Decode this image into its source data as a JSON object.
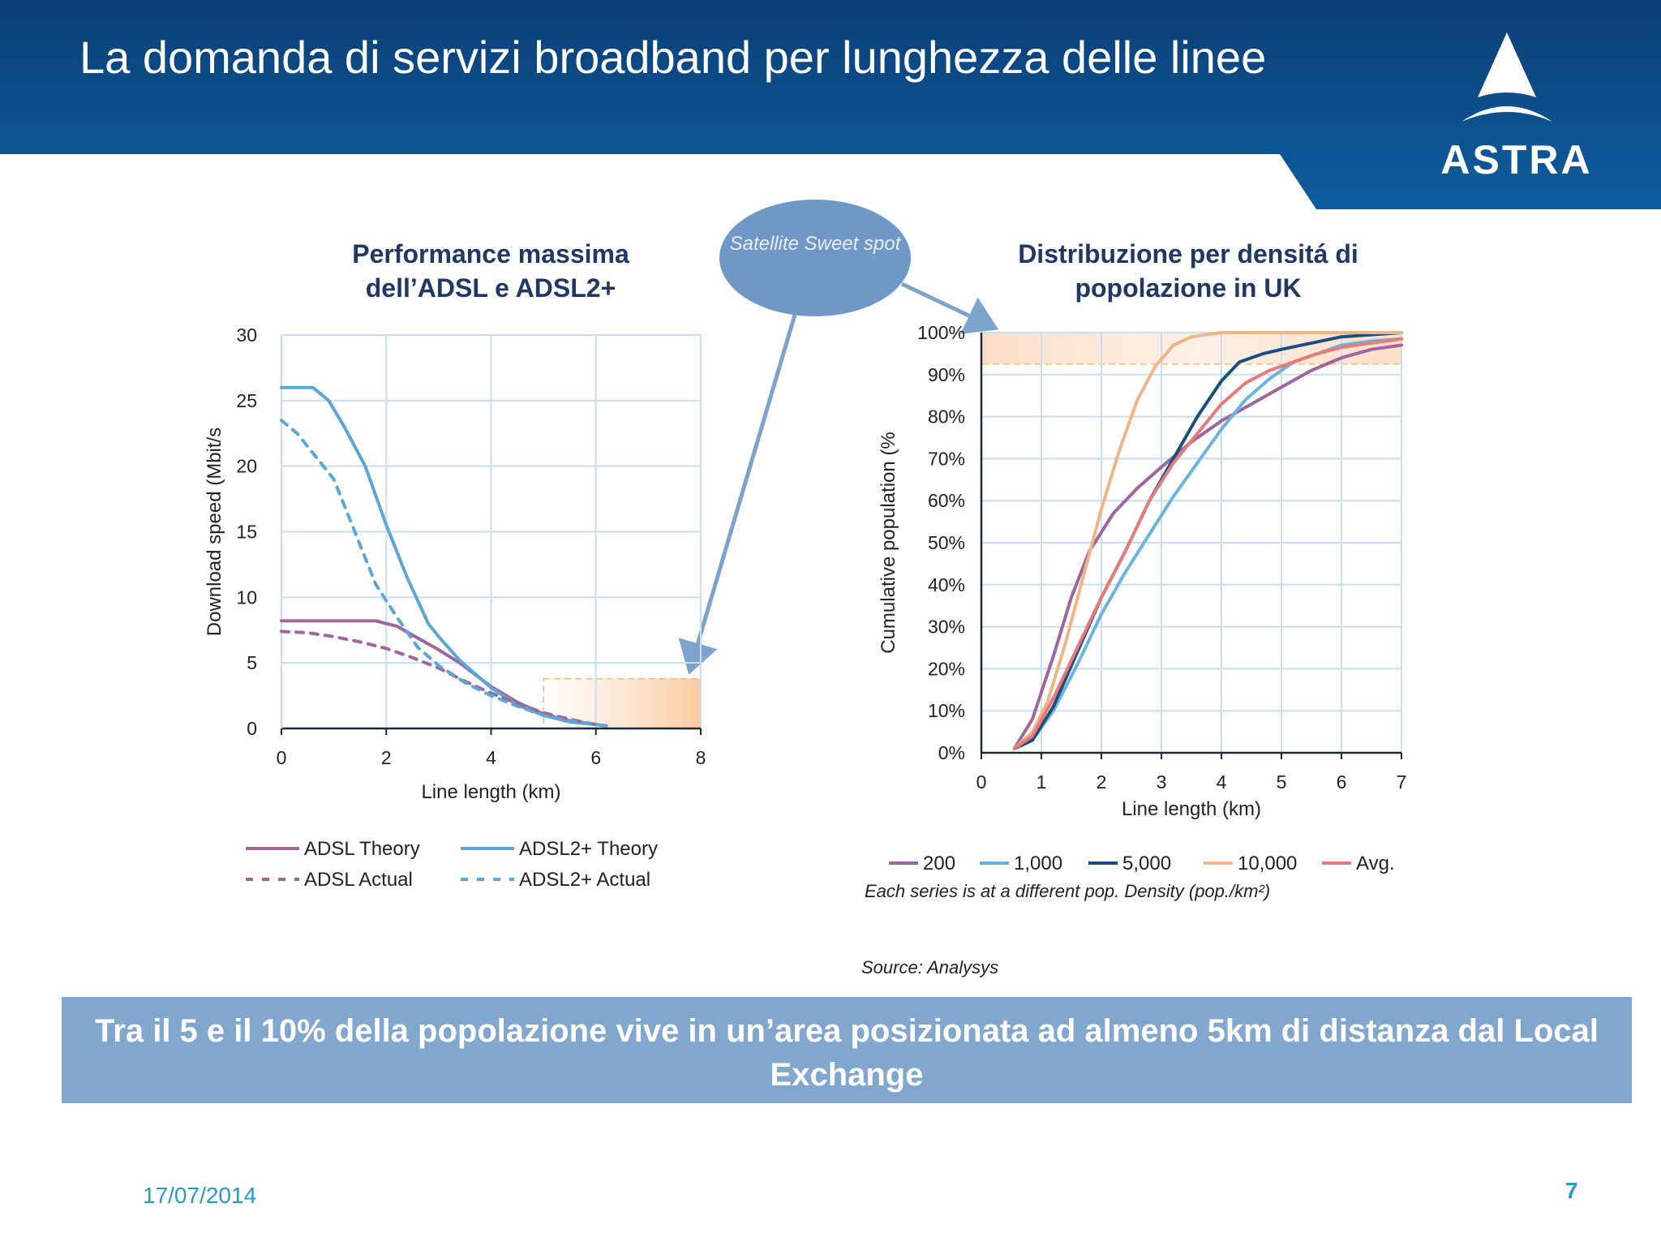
{
  "slide": {
    "title": "La domanda di servizi broadband per lunghezza delle linee",
    "logo": "ASTRA",
    "bubble": "Satellite Sweet spot",
    "source": "Source: Analysys",
    "banner": "Tra il 5 e il 10% della popolazione vive in un’area posizionata ad almeno 5km di distanza dal Local Exchange",
    "date": "17/07/2014",
    "page_number": "7",
    "colors": {
      "header": "#0e5591",
      "banner": "#82a7cf",
      "bubble": "#6f98c6",
      "arrow": "#7ba3cc",
      "highlight": "#fbd8b8"
    }
  },
  "chart_data": [
    {
      "type": "line",
      "title": "Performance massima dell’ADSL e ADSL2+",
      "xlabel": "Line length (km)",
      "ylabel": "Download speed (Mbit/s",
      "xlim": [
        0,
        8
      ],
      "ylim": [
        0,
        30
      ],
      "xticks": [
        "0",
        "2",
        "4",
        "6",
        "8"
      ],
      "yticks": [
        "0",
        "5",
        "10",
        "15",
        "20",
        "25",
        "30"
      ],
      "grid": true,
      "legend_position": "bottom",
      "highlight_region": {
        "x": [
          5,
          8
        ],
        "y": [
          0,
          3.8
        ]
      },
      "series": [
        {
          "name": "ADSL Theory",
          "color": "#a0659c",
          "dash": false,
          "points": [
            [
              0,
              8.2
            ],
            [
              1.8,
              8.2
            ],
            [
              2.2,
              7.8
            ],
            [
              2.6,
              6.9
            ],
            [
              3.0,
              6.0
            ],
            [
              3.4,
              5.0
            ],
            [
              4.0,
              3.2
            ],
            [
              4.5,
              2.0
            ],
            [
              5.0,
              1.1
            ],
            [
              5.5,
              0.6
            ],
            [
              6.0,
              0.3
            ],
            [
              6.2,
              0.2
            ]
          ]
        },
        {
          "name": "ADSL2+ Theory",
          "color": "#5aa6d6",
          "dash": false,
          "points": [
            [
              0,
              26
            ],
            [
              0.6,
              26
            ],
            [
              0.9,
              25
            ],
            [
              1.2,
              23
            ],
            [
              1.6,
              20
            ],
            [
              2.0,
              15.5
            ],
            [
              2.4,
              11.5
            ],
            [
              2.8,
              8
            ],
            [
              3.0,
              7
            ],
            [
              3.4,
              5.2
            ],
            [
              4.0,
              3.1
            ],
            [
              4.5,
              1.8
            ],
            [
              5.0,
              1.0
            ],
            [
              5.5,
              0.5
            ],
            [
              6.0,
              0.3
            ],
            [
              6.2,
              0.2
            ]
          ]
        },
        {
          "name": "ADSL Actual",
          "color": "#a0659c",
          "dash": true,
          "points": [
            [
              0,
              7.4
            ],
            [
              0.5,
              7.3
            ],
            [
              1.0,
              7.0
            ],
            [
              1.5,
              6.6
            ],
            [
              2.0,
              6.1
            ],
            [
              2.5,
              5.4
            ],
            [
              3.0,
              4.6
            ],
            [
              3.5,
              3.6
            ],
            [
              4.0,
              2.7
            ],
            [
              4.5,
              1.9
            ],
            [
              5.0,
              1.2
            ],
            [
              5.5,
              0.7
            ],
            [
              6.0,
              0.3
            ]
          ]
        },
        {
          "name": "ADSL2+ Actual",
          "color": "#5aa6d6",
          "dash": true,
          "points": [
            [
              0,
              23.5
            ],
            [
              0.3,
              22.5
            ],
            [
              0.6,
              21
            ],
            [
              1.0,
              19
            ],
            [
              1.4,
              15
            ],
            [
              1.8,
              11
            ],
            [
              2.2,
              8.5
            ],
            [
              2.6,
              6.2
            ],
            [
              3.0,
              4.8
            ],
            [
              3.5,
              3.5
            ],
            [
              4.0,
              2.5
            ],
            [
              4.5,
              1.7
            ],
            [
              5.0,
              1.0
            ],
            [
              5.5,
              0.6
            ],
            [
              6.0,
              0.3
            ]
          ]
        }
      ]
    },
    {
      "type": "line",
      "title": "Distribuzione per densitá di popolazione in UK",
      "xlabel": "Line length (km)",
      "ylabel": "Cumulative population (%",
      "xlim": [
        0,
        7
      ],
      "ylim": [
        0,
        100
      ],
      "xticks": [
        "0",
        "1",
        "2",
        "3",
        "4",
        "5",
        "6",
        "7"
      ],
      "yticks": [
        "0%",
        "10%",
        "20%",
        "30%",
        "40%",
        "50%",
        "60%",
        "70%",
        "80%",
        "90%",
        "100%"
      ],
      "grid": true,
      "legend_position": "bottom",
      "note": "Each series is at a different pop. Density (pop./km²)",
      "highlight_region": {
        "x": [
          0,
          7
        ],
        "y": [
          92.5,
          100
        ]
      },
      "series": [
        {
          "name": "200",
          "color": "#a0659c",
          "points": [
            [
              0.55,
              1
            ],
            [
              0.85,
              8
            ],
            [
              1.2,
              23
            ],
            [
              1.5,
              37
            ],
            [
              1.8,
              48
            ],
            [
              2.2,
              57
            ],
            [
              2.6,
              63
            ],
            [
              3.0,
              68
            ],
            [
              3.5,
              74
            ],
            [
              4.0,
              79
            ],
            [
              4.5,
              83
            ],
            [
              5.0,
              87
            ],
            [
              5.5,
              91
            ],
            [
              6.0,
              94
            ],
            [
              6.5,
              96
            ],
            [
              7.0,
              97
            ]
          ]
        },
        {
          "name": "1,000",
          "color": "#6ab4df",
          "points": [
            [
              0.55,
              1
            ],
            [
              0.85,
              3
            ],
            [
              1.2,
              10
            ],
            [
              1.6,
              21
            ],
            [
              2.0,
              33
            ],
            [
              2.4,
              43
            ],
            [
              2.8,
              52
            ],
            [
              3.2,
              61
            ],
            [
              3.6,
              69
            ],
            [
              4.0,
              77
            ],
            [
              4.4,
              84
            ],
            [
              4.8,
              89
            ],
            [
              5.2,
              93
            ],
            [
              5.6,
              95
            ],
            [
              6.0,
              97
            ],
            [
              6.5,
              98
            ],
            [
              7.0,
              98.5
            ]
          ]
        },
        {
          "name": "5,000",
          "color": "#1b4f80",
          "points": [
            [
              0.55,
              1
            ],
            [
              0.85,
              3
            ],
            [
              1.2,
              11
            ],
            [
              1.6,
              24
            ],
            [
              2.0,
              37
            ],
            [
              2.4,
              48
            ],
            [
              2.8,
              60
            ],
            [
              3.2,
              70
            ],
            [
              3.6,
              80
            ],
            [
              4.0,
              88.5
            ],
            [
              4.3,
              93
            ],
            [
              4.7,
              95
            ],
            [
              5.0,
              96
            ],
            [
              5.5,
              97.5
            ],
            [
              6.0,
              99
            ],
            [
              6.5,
              99.5
            ],
            [
              7.0,
              100
            ]
          ]
        },
        {
          "name": "10,000",
          "color": "#f0b587",
          "points": [
            [
              0.55,
              1
            ],
            [
              0.85,
              5
            ],
            [
              1.1,
              12
            ],
            [
              1.4,
              26
            ],
            [
              1.7,
              42
            ],
            [
              2.0,
              58
            ],
            [
              2.3,
              72
            ],
            [
              2.6,
              84
            ],
            [
              2.9,
              92
            ],
            [
              3.2,
              97
            ],
            [
              3.5,
              99
            ],
            [
              4.0,
              100
            ],
            [
              7.0,
              100
            ]
          ]
        },
        {
          "name": "Avg.",
          "color": "#e77b7b",
          "points": [
            [
              0.55,
              1
            ],
            [
              0.85,
              4
            ],
            [
              1.2,
              13
            ],
            [
              1.6,
              25
            ],
            [
              2.0,
              37
            ],
            [
              2.4,
              48
            ],
            [
              2.8,
              60
            ],
            [
              3.2,
              69
            ],
            [
              3.6,
              76
            ],
            [
              4.0,
              83
            ],
            [
              4.4,
              88
            ],
            [
              4.8,
              91
            ],
            [
              5.2,
              93
            ],
            [
              5.6,
              95
            ],
            [
              6.0,
              96.5
            ],
            [
              6.5,
              97.5
            ],
            [
              7.0,
              98.5
            ]
          ]
        }
      ]
    }
  ]
}
